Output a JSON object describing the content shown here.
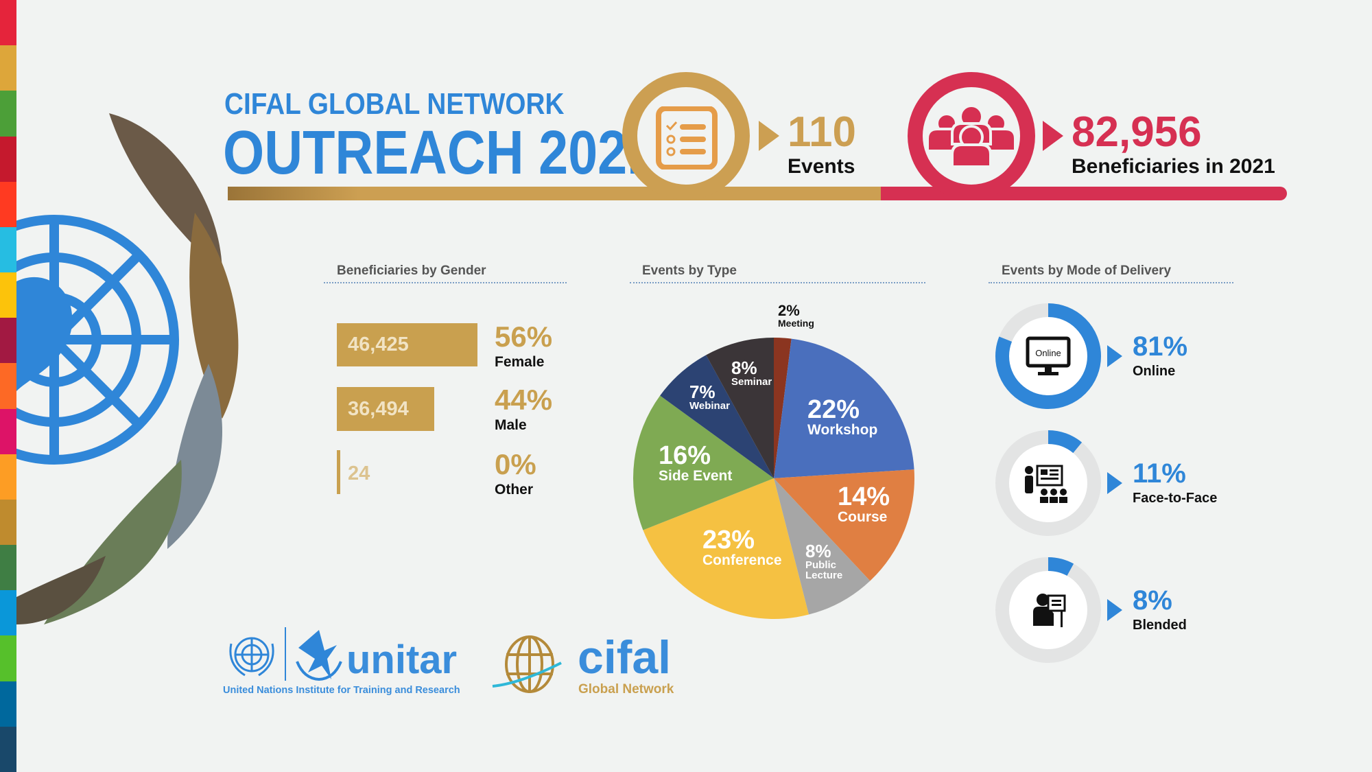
{
  "title": {
    "line1": "CIFAL GLOBAL NETWORK",
    "line2": "OUTREACH 2021"
  },
  "kpis": [
    {
      "value": "110",
      "label": "Events",
      "icon": "checklist-icon",
      "color": "#cc9f52"
    },
    {
      "value": "82,956",
      "label": "Beneficiaries in 2021",
      "icon": "people-group-icon",
      "color": "#d63052"
    }
  ],
  "gender": {
    "heading": "Beneficiaries by Gender",
    "rows": [
      {
        "count": "46,425",
        "pct": "56%",
        "label": "Female",
        "share": 56
      },
      {
        "count": "36,494",
        "pct": "44%",
        "label": "Male",
        "share": 44
      },
      {
        "count": "24",
        "pct": "0%",
        "label": "Other",
        "share": 0
      }
    ]
  },
  "chart_data": {
    "type": "pie",
    "title": "Events by Type",
    "slices": [
      {
        "label": "Meeting",
        "pct": "2%",
        "value": 2,
        "color": "#8b3520"
      },
      {
        "label": "Workshop",
        "pct": "22%",
        "value": 22,
        "color": "#4a6fbd"
      },
      {
        "label": "Course",
        "pct": "14%",
        "value": 14,
        "color": "#e07f42"
      },
      {
        "label": "Public Lecture",
        "pct": "8%",
        "value": 8,
        "color": "#a6a6a6"
      },
      {
        "label": "Conference",
        "pct": "23%",
        "value": 23,
        "color": "#f5c142"
      },
      {
        "label": "Side Event",
        "pct": "16%",
        "value": 16,
        "color": "#7faa53"
      },
      {
        "label": "Webinar",
        "pct": "7%",
        "value": 7,
        "color": "#2c4373"
      },
      {
        "label": "Seminar",
        "pct": "8%",
        "value": 8,
        "color": "#3b3538"
      }
    ]
  },
  "delivery": {
    "heading": "Events by Mode of Delivery",
    "rows": [
      {
        "pct": "81%",
        "label": "Online",
        "value": 81,
        "icon": "online-monitor-icon",
        "icon_text": "Online"
      },
      {
        "pct": "11%",
        "label": "Face-to-Face",
        "value": 11,
        "icon": "presenter-audience-icon"
      },
      {
        "pct": "8%",
        "label": "Blended",
        "value": 8,
        "icon": "presenter-board-icon"
      }
    ]
  },
  "logos": {
    "unitar": "unitar",
    "unitar_sub": "United Nations Institute for Training and Research",
    "cifal": "cifal",
    "cifal_sub": "Global Network"
  },
  "colors": {
    "blue": "#2f86d8",
    "gold": "#cc9f52",
    "red": "#d63052"
  }
}
